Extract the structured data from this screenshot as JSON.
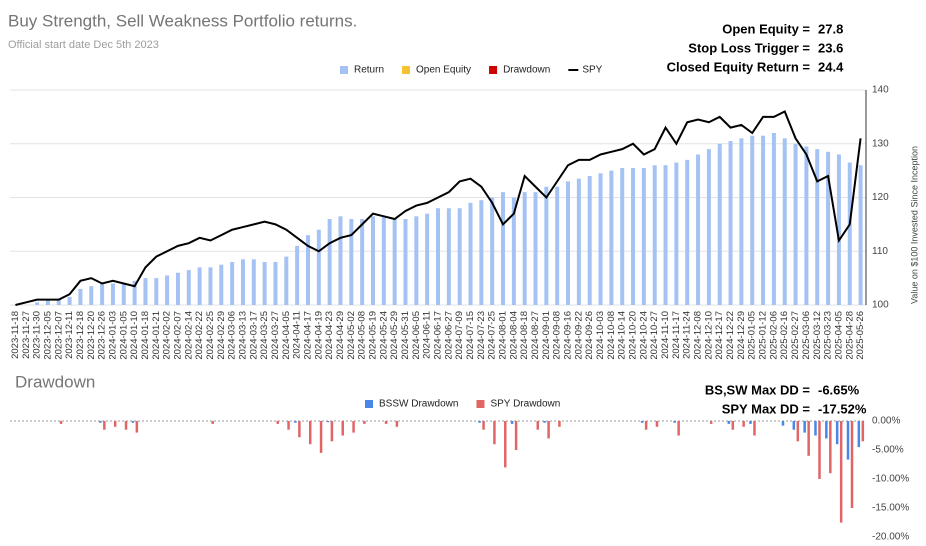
{
  "chart_data": [
    {
      "type": "combo",
      "title": "Buy Strength, Sell Weakness Portfolio returns.",
      "subtitle": "Official start date Dec 5th 2023",
      "y_label": "Value on $100 Invested Since Inception",
      "stats": [
        {
          "label": "Open Equity =",
          "value": 27.8
        },
        {
          "label": "Stop Loss Trigger =",
          "value": 23.6
        },
        {
          "label": "Closed Equity Return =",
          "value": 24.4
        }
      ],
      "categories": [
        "2023-11-18",
        "2023-11-27",
        "2023-11-30",
        "2023-12-05",
        "2023-12-07",
        "2023-12-11",
        "2023-12-18",
        "2023-12-20",
        "2023-12-26",
        "2024-01-03",
        "2024-01-05",
        "2024-01-10",
        "2024-01-18",
        "2024-01-21",
        "2024-02-02",
        "2024-02-07",
        "2024-02-14",
        "2024-02-22",
        "2024-02-25",
        "2024-02-29",
        "2024-03-06",
        "2024-03-13",
        "2024-03-17",
        "2024-03-25",
        "2024-03-27",
        "2024-04-05",
        "2024-04-11",
        "2024-04-17",
        "2024-04-19",
        "2024-04-23",
        "2024-04-29",
        "2024-05-02",
        "2024-05-08",
        "2024-05-19",
        "2024-05-24",
        "2024-05-29",
        "2024-05-31",
        "2024-06-05",
        "2024-06-11",
        "2024-06-17",
        "2024-06-27",
        "2024-07-09",
        "2024-07-15",
        "2024-07-23",
        "2024-07-25",
        "2024-08-01",
        "2024-08-04",
        "2024-08-18",
        "2024-08-27",
        "2024-09-01",
        "2024-09-08",
        "2024-09-16",
        "2024-09-22",
        "2024-09-26",
        "2024-10-03",
        "2024-10-08",
        "2024-10-14",
        "2024-10-20",
        "2024-10-24",
        "2024-10-27",
        "2024-11-10",
        "2024-11-17",
        "2024-11-24",
        "2024-12-08",
        "2024-12-10",
        "2024-12-17",
        "2024-12-22",
        "2024-12-29",
        "2025-01-05",
        "2025-01-12",
        "2025-02-06",
        "2025-02-16",
        "2025-02-27",
        "2025-03-06",
        "2025-03-12",
        "2025-03-23",
        "2025-04-05",
        "2025-04-28",
        "2025-05-26"
      ],
      "series": [
        {
          "name": "Return",
          "color": "#a4c2f4",
          "kind": "bar",
          "values": [
            100,
            100,
            100.5,
            101,
            101,
            101.5,
            103,
            103.5,
            104,
            104,
            104,
            104.5,
            105,
            105,
            105.5,
            106,
            106.5,
            107,
            107,
            107.5,
            108,
            108.5,
            108.5,
            108,
            108,
            109,
            111,
            113,
            114,
            116,
            116.5,
            116,
            116,
            116.5,
            116.5,
            116,
            116,
            116.5,
            117,
            118,
            118,
            118,
            119,
            119.5,
            120,
            121,
            120,
            121,
            121,
            122,
            122,
            123,
            123.5,
            124,
            124.5,
            125,
            125.5,
            125.5,
            125.5,
            126,
            126,
            126.5,
            127,
            128,
            129,
            130,
            130.5,
            131,
            131.5,
            131.5,
            132,
            131,
            130,
            129.5,
            129,
            128.5,
            128,
            126.5,
            126
          ]
        },
        {
          "name": "Open Equity",
          "color": "#f1c232"
        },
        {
          "name": "Drawdown",
          "color": "#cc0000"
        },
        {
          "name": "SPY",
          "color": "#000000",
          "kind": "line",
          "values": [
            100,
            100.5,
            101,
            101,
            101,
            102,
            104.5,
            105,
            104,
            104.5,
            104,
            103.5,
            107,
            109,
            110,
            111,
            111.5,
            112.5,
            112,
            113,
            114,
            114.5,
            115,
            115.5,
            115,
            114,
            112.5,
            111,
            110,
            111.5,
            112.5,
            113,
            115,
            117,
            116.5,
            116,
            117.5,
            118.5,
            119,
            120,
            121,
            123,
            123.5,
            122,
            119,
            115,
            117,
            124,
            122,
            120,
            123,
            126,
            127,
            127,
            128,
            128.5,
            129,
            130,
            128,
            129,
            133,
            130,
            134,
            134.5,
            134,
            135,
            133,
            133.5,
            132,
            135,
            135,
            136,
            131,
            128,
            123,
            124,
            112,
            115,
            131
          ]
        }
      ],
      "ylim": [
        100,
        140
      ],
      "yticks": [
        100,
        110,
        120,
        130,
        140
      ],
      "grid": true
    },
    {
      "type": "bar",
      "title": "Drawdown",
      "stats": [
        {
          "label": "BS,SW Max DD =",
          "value": "-6.65%"
        },
        {
          "label": "SPY Max DD =",
          "value": "-17.52%"
        }
      ],
      "series": [
        {
          "name": "BSSW Drawdown",
          "color": "#4a86e8",
          "values": [
            0,
            0,
            0,
            0,
            0,
            0,
            0,
            0,
            -0.3,
            0,
            0,
            -0.3,
            0,
            0,
            0,
            0,
            0,
            0,
            0,
            0,
            0,
            0,
            0,
            0,
            0,
            0,
            -0.3,
            0,
            0,
            -0.2,
            0,
            0,
            0,
            0,
            0,
            0,
            0,
            0,
            0,
            0,
            0,
            0,
            0,
            -0.3,
            0,
            0,
            -0.5,
            0,
            0,
            -0.3,
            0,
            0,
            0,
            0,
            0,
            0,
            0,
            0,
            -0.3,
            0,
            0,
            -0.3,
            0,
            0,
            0,
            0,
            -0.5,
            0,
            -0.5,
            0,
            0,
            -0.8,
            -1.5,
            -2,
            -2.5,
            -3,
            -4,
            -6.65,
            -4.5
          ]
        },
        {
          "name": "SPY Drawdown",
          "color": "#e06666",
          "values": [
            0,
            0,
            0,
            0,
            -0.5,
            0,
            0,
            0,
            -1.5,
            -1,
            -1.5,
            -2,
            0,
            0,
            0,
            0,
            0,
            0,
            -0.5,
            0,
            0,
            0,
            0,
            0,
            -0.5,
            -1.5,
            -2.8,
            -4,
            -5.5,
            -3.5,
            -2.5,
            -2,
            -0.5,
            0,
            -0.5,
            -1,
            0,
            0,
            0,
            0,
            0,
            0,
            0,
            -1.5,
            -4,
            -8,
            -5,
            0,
            -1.5,
            -3,
            -1,
            0,
            0,
            0,
            0,
            0,
            0,
            0,
            -1.5,
            -1,
            0,
            -2.5,
            0,
            0,
            -0.5,
            0,
            -1.5,
            -1,
            -2.5,
            0,
            0,
            0,
            -3.5,
            -6,
            -10,
            -9,
            -17.52,
            -15,
            -3.5
          ]
        }
      ],
      "ylim": [
        -20,
        0
      ],
      "yticks": [
        {
          "value": 0,
          "label": "0.00%"
        },
        {
          "value": -5,
          "label": "-5.00%"
        },
        {
          "value": -10,
          "label": "-10.00%"
        },
        {
          "value": -15,
          "label": "-15.00%"
        },
        {
          "value": -20,
          "label": "-20.00%"
        }
      ]
    }
  ]
}
